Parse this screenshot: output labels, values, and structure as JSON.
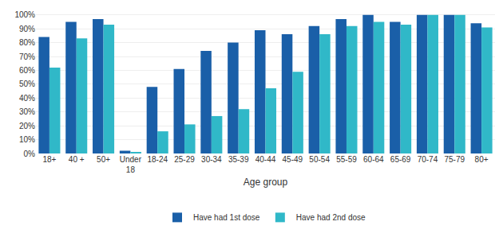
{
  "chart_data": {
    "type": "bar",
    "categories": [
      "18+",
      "40 +",
      "50+",
      "Under\n18",
      "18-24",
      "25-29",
      "30-34",
      "35-39",
      "40-44",
      "45-49",
      "50-54",
      "55-59",
      "60-64",
      "65-69",
      "70-74",
      "75-79",
      "80+"
    ],
    "series": [
      {
        "name": "Have had 1st dose",
        "color": "#1a5fa8",
        "values": [
          84,
          95,
          97,
          2,
          48,
          61,
          74,
          80,
          89,
          86,
          92,
          97,
          100,
          95,
          100,
          100,
          94
        ]
      },
      {
        "name": "Have had 2nd dose",
        "color": "#30b8c8",
        "values": [
          62,
          83,
          93,
          1,
          16,
          21,
          27,
          32,
          47,
          59,
          86,
          92,
          95,
          93,
          100,
          100,
          91
        ]
      }
    ],
    "xlabel": "Age group",
    "ylim": [
      0,
      105
    ],
    "yticks": [
      {
        "value": 0,
        "label": "0%"
      },
      {
        "value": 10,
        "label": "10%"
      },
      {
        "value": 20,
        "label": "20%"
      },
      {
        "value": 30,
        "label": "30%"
      },
      {
        "value": 40,
        "label": "40%"
      },
      {
        "value": 50,
        "label": "50%"
      },
      {
        "value": 60,
        "label": "60%"
      },
      {
        "value": 70,
        "label": "70%"
      },
      {
        "value": 80,
        "label": "80%"
      },
      {
        "value": 90,
        "label": "90%"
      },
      {
        "value": 100,
        "label": "100%"
      }
    ],
    "grid": true,
    "legend": "bottom"
  }
}
